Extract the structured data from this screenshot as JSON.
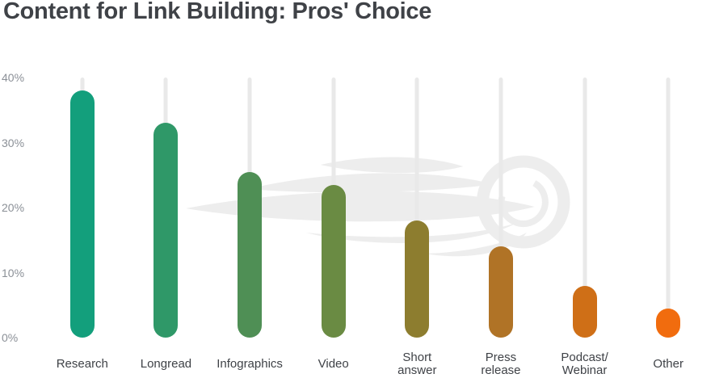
{
  "title": "Content for Link Building: Pros' Choice",
  "colors": {
    "background": "#ffffff",
    "title": "#3f4247",
    "axis_labels": "#8b9097",
    "category_labels": "#3f4247",
    "bar_track": "#e9e9e9",
    "watermark": "#ededed"
  },
  "watermark_icon": "semrush-flame-logo",
  "chart_data": {
    "type": "bar",
    "title": "Content for Link Building: Pros' Choice",
    "categories": [
      "Research",
      "Longread",
      "Infographics",
      "Video",
      "Short answer",
      "Press release",
      "Podcast/Webinar",
      "Other"
    ],
    "category_display": [
      "Research",
      "Longread",
      "Infographics",
      "Video",
      "Short\nanswer",
      "Press\nrelease",
      "Podcast/\nWebinar",
      "Other"
    ],
    "values": [
      38,
      33,
      25.5,
      23.5,
      18,
      14,
      8,
      4.5
    ],
    "unit": "%",
    "bar_colors": [
      "#139f7c",
      "#2f9868",
      "#4f8f55",
      "#6a8b43",
      "#8d7d2f",
      "#b07326",
      "#cf6f17",
      "#f16c0e"
    ],
    "xlabel": "",
    "ylabel": "",
    "ylim": [
      0,
      40
    ],
    "yticks_top_to_bottom": [
      "40%",
      "30%",
      "20%",
      "10%",
      "0%"
    ],
    "grid": false,
    "legend": "none",
    "bar_style": "rounded-capsule-on-track"
  }
}
